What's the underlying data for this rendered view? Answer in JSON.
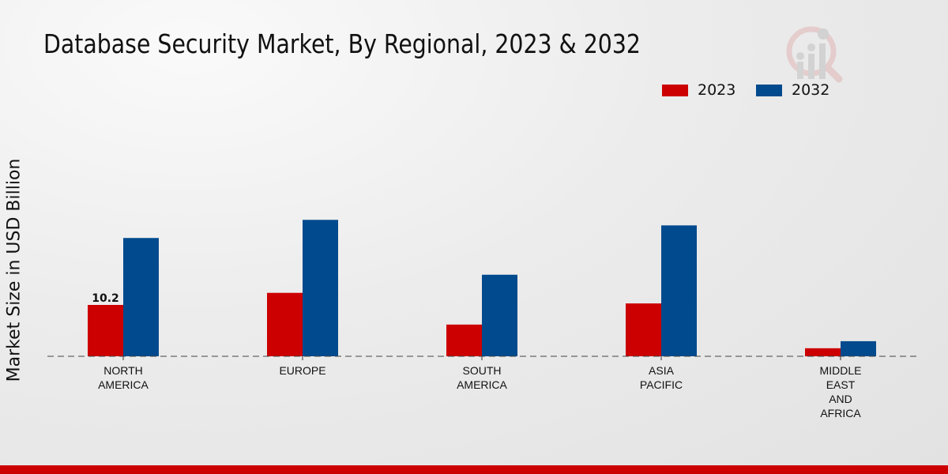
{
  "chart_data": {
    "type": "bar",
    "title": "Database Security Market, By Regional, 2023 & 2032",
    "xlabel": "",
    "ylabel": "Market Size in USD Billion",
    "categories": [
      "NORTH\nAMERICA",
      "EUROPE",
      "SOUTH\nAMERICA",
      "ASIA\nPACIFIC",
      "MIDDLE\nEAST\nAND\nAFRICA"
    ],
    "series": [
      {
        "name": "2023",
        "color": "#cc0000",
        "values": [
          10.2,
          12.6,
          6.3,
          10.5,
          1.6
        ]
      },
      {
        "name": "2032",
        "color": "#004a8d",
        "values": [
          23.5,
          27.1,
          16.2,
          26.0,
          3.0
        ]
      }
    ],
    "data_labels": [
      {
        "series": "2023",
        "category_index": 0,
        "text": "10.2"
      }
    ],
    "ylim": [
      0,
      35
    ],
    "grid": false,
    "legend_placement": "top-right"
  }
}
